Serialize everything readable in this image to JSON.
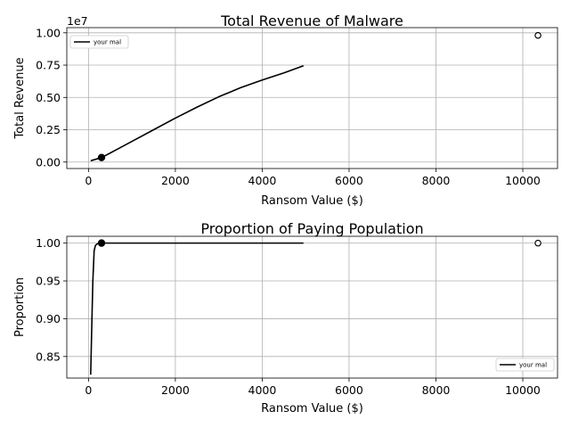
{
  "chart_data": [
    {
      "type": "line",
      "title": "Total Revenue of Malware",
      "xlabel": "Ransom Value ($)",
      "ylabel": "Total Revenue",
      "y_offset_label": "1e7",
      "xlim": [
        -500,
        10800
      ],
      "ylim": [
        -0.05,
        1.04
      ],
      "x_ticks": [
        0,
        2000,
        4000,
        6000,
        8000,
        10000
      ],
      "x_tick_labels": [
        "0",
        "2000",
        "4000",
        "6000",
        "8000",
        "10000"
      ],
      "y_ticks": [
        0.0,
        0.25,
        0.5,
        0.75,
        1.0
      ],
      "y_tick_labels": [
        "0.00",
        "0.25",
        "0.50",
        "0.75",
        "1.00"
      ],
      "grid": true,
      "legend_position": "upper-left",
      "series": [
        {
          "name": "your mal",
          "color": "#000000",
          "x": [
            50,
            300,
            500,
            1000,
            1500,
            2000,
            2500,
            3000,
            3500,
            4000,
            4500,
            4950
          ],
          "y": [
            0.01,
            0.035,
            0.07,
            0.16,
            0.25,
            0.34,
            0.425,
            0.505,
            0.575,
            0.635,
            0.69,
            0.745
          ]
        }
      ],
      "markers": [
        {
          "x": 300,
          "y": 0.035,
          "style": "filled"
        },
        {
          "x": 10350,
          "y": 0.98,
          "style": "hollow"
        }
      ]
    },
    {
      "type": "line",
      "title": "Proportion of Paying Population",
      "xlabel": "Ransom Value ($)",
      "ylabel": "Proportion",
      "xlim": [
        -500,
        10800
      ],
      "ylim": [
        0.8215,
        1.009
      ],
      "x_ticks": [
        0,
        2000,
        4000,
        6000,
        8000,
        10000
      ],
      "x_tick_labels": [
        "0",
        "2000",
        "4000",
        "6000",
        "8000",
        "10000"
      ],
      "y_ticks": [
        0.85,
        0.9,
        0.95,
        1.0
      ],
      "y_tick_labels": [
        "0.85",
        "0.90",
        "0.95",
        "1.00"
      ],
      "grid": true,
      "legend_position": "lower-right",
      "series": [
        {
          "name": "your mal",
          "color": "#000000",
          "x": [
            50,
            75,
            100,
            130,
            160,
            200,
            300,
            1000,
            2000,
            3000,
            4000,
            4950
          ],
          "y": [
            0.826,
            0.89,
            0.95,
            0.99,
            0.997,
            0.999,
            1.0,
            1.0,
            1.0,
            1.0,
            1.0,
            1.0
          ]
        }
      ],
      "markers": [
        {
          "x": 300,
          "y": 1.0,
          "style": "filled"
        },
        {
          "x": 10350,
          "y": 1.0,
          "style": "hollow"
        }
      ]
    }
  ]
}
